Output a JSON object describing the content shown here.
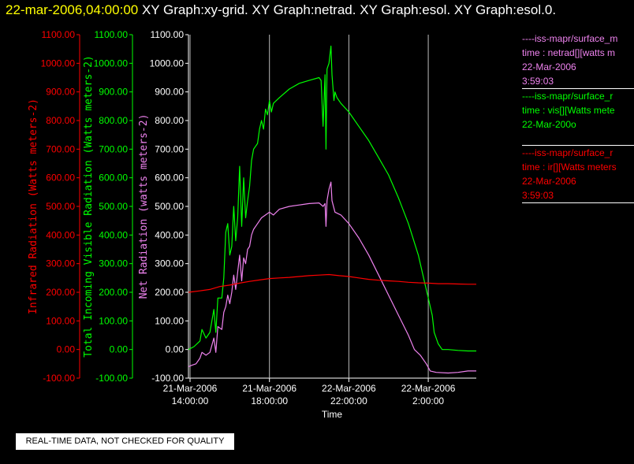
{
  "header": {
    "timestamp": "22-mar-2006,04:00:00",
    "graphs": " XY Graph:xy-grid.  XY Graph:netrad.  XY Graph:esol.  XY Graph:esol.0."
  },
  "colors": {
    "background": "#000000",
    "infrared": "#ff0000",
    "visible": "#00ff00",
    "net": "#ee82ee",
    "axis_text": "#ffffff",
    "title_time": "#ffff00"
  },
  "legend": [
    {
      "source": "----iss-mapr/surface_m",
      "series": "time : netrad[][watts m",
      "date": "22-Mar-2006",
      "time": "3:59:03",
      "color": "#ee82ee"
    },
    {
      "source": "----iss-mapr/surface_r",
      "series": "time : vis[][Watts mete",
      "date": "22-Mar-200o",
      "time": "",
      "color": "#00ff00"
    },
    {
      "source": "----iss-mapr/surface_r",
      "series": "time : ir[][Watts meters",
      "date": "22-Mar-2006",
      "time": "3:59:03",
      "color": "#ff0000"
    }
  ],
  "footer": {
    "quality_note": "REAL-TIME DATA, NOT CHECKED FOR QUALITY"
  },
  "chart_data": {
    "type": "line",
    "title": "",
    "xlabel": "Time",
    "x_ticks": [
      {
        "x": 14,
        "date": "21-Mar-2006",
        "time": "14:00:00"
      },
      {
        "x": 18,
        "date": "21-Mar-2006",
        "time": "18:00:00"
      },
      {
        "x": 22,
        "date": "22-Mar-2006",
        "time": "22:00:00"
      },
      {
        "x": 26,
        "date": "22-Mar-2006",
        "time": "2:00:00"
      }
    ],
    "xlim": [
      13.92,
      28.42
    ],
    "ylim": [
      -100,
      1100
    ],
    "y_ticks": [
      "-100.00",
      "0.00",
      "100.00",
      "200.00",
      "300.00",
      "400.00",
      "500.00",
      "600.00",
      "700.00",
      "800.00",
      "900.00",
      "1000.00",
      "1100.00"
    ],
    "y_ticks_visible": [
      "-100.00",
      "0.00",
      "100.00",
      "200.00",
      "300.00",
      "400.00",
      "500.00",
      "600.00",
      "700.00",
      "800.00",
      "900.00",
      "1000.00",
      "1100.00"
    ],
    "y_ticks_net": [
      "-100.00",
      "0.00",
      "100.00",
      "200.00",
      "300.00",
      "400.00",
      "500.00",
      "600.00",
      "700.00",
      "800.00",
      "900.00",
      "1000.00",
      "1100.00"
    ],
    "axis_labels": {
      "infrared": "Infrared Radiation (Watts meters-2)",
      "visible": "Total Incoming Visible Radiation (Watts meters-2)",
      "net": "Net Radiation (watts meters-2)"
    },
    "grid": "vertical lines at x ticks",
    "series": [
      {
        "name": "vis",
        "color": "#00ff00",
        "points": [
          [
            13.92,
            0
          ],
          [
            14.2,
            10
          ],
          [
            14.5,
            30
          ],
          [
            14.6,
            70
          ],
          [
            14.8,
            40
          ],
          [
            15.0,
            60
          ],
          [
            15.2,
            140
          ],
          [
            15.3,
            60
          ],
          [
            15.4,
            180
          ],
          [
            15.6,
            180
          ],
          [
            15.7,
            250
          ],
          [
            15.8,
            410
          ],
          [
            15.9,
            440
          ],
          [
            16.0,
            330
          ],
          [
            16.1,
            360
          ],
          [
            16.2,
            500
          ],
          [
            16.3,
            380
          ],
          [
            16.4,
            460
          ],
          [
            16.5,
            640
          ],
          [
            16.6,
            430
          ],
          [
            16.7,
            600
          ],
          [
            16.8,
            460
          ],
          [
            16.9,
            520
          ],
          [
            17.0,
            570
          ],
          [
            17.1,
            660
          ],
          [
            17.2,
            700
          ],
          [
            17.4,
            720
          ],
          [
            17.5,
            770
          ],
          [
            17.6,
            800
          ],
          [
            17.7,
            770
          ],
          [
            17.8,
            840
          ],
          [
            17.9,
            820
          ],
          [
            18.0,
            870
          ],
          [
            18.1,
            830
          ],
          [
            18.2,
            860
          ],
          [
            18.5,
            880
          ],
          [
            19.0,
            910
          ],
          [
            19.5,
            930
          ],
          [
            20.0,
            940
          ],
          [
            20.5,
            950
          ],
          [
            20.6,
            940
          ],
          [
            20.7,
            780
          ],
          [
            20.8,
            960
          ],
          [
            20.85,
            700
          ],
          [
            20.9,
            980
          ],
          [
            21.0,
            1000
          ],
          [
            21.1,
            1060
          ],
          [
            21.15,
            960
          ],
          [
            21.25,
            870
          ],
          [
            21.3,
            900
          ],
          [
            21.4,
            880
          ],
          [
            21.6,
            860
          ],
          [
            22.0,
            830
          ],
          [
            22.5,
            780
          ],
          [
            23.0,
            730
          ],
          [
            23.5,
            670
          ],
          [
            24.0,
            610
          ],
          [
            24.5,
            530
          ],
          [
            25.0,
            440
          ],
          [
            25.5,
            330
          ],
          [
            25.8,
            240
          ],
          [
            26.0,
            180
          ],
          [
            26.2,
            120
          ],
          [
            26.3,
            60
          ],
          [
            26.5,
            20
          ],
          [
            26.7,
            0
          ],
          [
            27.0,
            0
          ],
          [
            27.5,
            -3
          ],
          [
            28.0,
            -5
          ],
          [
            28.42,
            -5
          ]
        ]
      },
      {
        "name": "netrad",
        "color": "#ee82ee",
        "points": [
          [
            13.92,
            -60
          ],
          [
            14.1,
            -55
          ],
          [
            14.3,
            -50
          ],
          [
            14.5,
            -30
          ],
          [
            14.6,
            -10
          ],
          [
            14.8,
            -20
          ],
          [
            15.0,
            -10
          ],
          [
            15.2,
            40
          ],
          [
            15.3,
            -10
          ],
          [
            15.4,
            80
          ],
          [
            15.6,
            70
          ],
          [
            15.7,
            130
          ],
          [
            15.8,
            150
          ],
          [
            15.9,
            190
          ],
          [
            16.0,
            160
          ],
          [
            16.1,
            200
          ],
          [
            16.2,
            260
          ],
          [
            16.3,
            210
          ],
          [
            16.4,
            270
          ],
          [
            16.5,
            330
          ],
          [
            16.6,
            240
          ],
          [
            16.7,
            320
          ],
          [
            16.8,
            300
          ],
          [
            16.9,
            350
          ],
          [
            17.0,
            360
          ],
          [
            17.1,
            400
          ],
          [
            17.2,
            420
          ],
          [
            17.4,
            440
          ],
          [
            17.6,
            460
          ],
          [
            17.8,
            470
          ],
          [
            18.0,
            480
          ],
          [
            18.2,
            470
          ],
          [
            18.5,
            490
          ],
          [
            19.0,
            500
          ],
          [
            19.5,
            505
          ],
          [
            20.0,
            510
          ],
          [
            20.5,
            512
          ],
          [
            20.7,
            500
          ],
          [
            20.8,
            510
          ],
          [
            20.85,
            430
          ],
          [
            20.9,
            520
          ],
          [
            21.0,
            560
          ],
          [
            21.1,
            585
          ],
          [
            21.15,
            520
          ],
          [
            21.3,
            480
          ],
          [
            21.6,
            470
          ],
          [
            22.0,
            440
          ],
          [
            22.5,
            390
          ],
          [
            23.0,
            330
          ],
          [
            23.5,
            260
          ],
          [
            24.0,
            190
          ],
          [
            24.5,
            120
          ],
          [
            25.0,
            50
          ],
          [
            25.3,
            0
          ],
          [
            25.6,
            -20
          ],
          [
            25.9,
            -50
          ],
          [
            26.1,
            -75
          ],
          [
            26.4,
            -80
          ],
          [
            27.0,
            -82
          ],
          [
            27.5,
            -80
          ],
          [
            28.0,
            -75
          ],
          [
            28.42,
            -75
          ]
        ]
      },
      {
        "name": "ir",
        "color": "#ff0000",
        "points": [
          [
            13.92,
            200
          ],
          [
            14.5,
            205
          ],
          [
            15.0,
            210
          ],
          [
            15.5,
            220
          ],
          [
            16.0,
            225
          ],
          [
            16.5,
            232
          ],
          [
            17.0,
            238
          ],
          [
            17.5,
            243
          ],
          [
            18.0,
            248
          ],
          [
            18.5,
            250
          ],
          [
            19.0,
            252
          ],
          [
            19.5,
            255
          ],
          [
            20.0,
            258
          ],
          [
            20.5,
            260
          ],
          [
            21.0,
            262
          ],
          [
            21.5,
            258
          ],
          [
            22.0,
            255
          ],
          [
            22.5,
            250
          ],
          [
            23.0,
            245
          ],
          [
            23.5,
            242
          ],
          [
            24.0,
            240
          ],
          [
            24.5,
            238
          ],
          [
            25.0,
            235
          ],
          [
            25.5,
            233
          ],
          [
            26.0,
            232
          ],
          [
            26.5,
            230
          ],
          [
            27.0,
            230
          ],
          [
            27.5,
            229
          ],
          [
            28.0,
            228
          ],
          [
            28.42,
            228
          ]
        ]
      }
    ]
  }
}
